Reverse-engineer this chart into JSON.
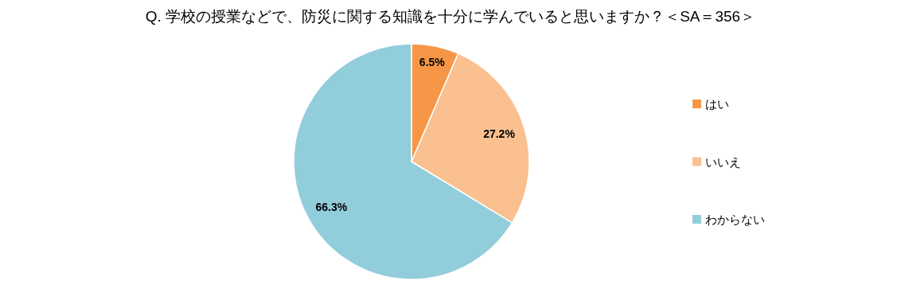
{
  "chart_data": {
    "type": "pie",
    "title": "Q. 学校の授業などで、防災に関する知識を十分に学んでいると思いますか？＜SA＝356＞",
    "categories": [
      "はい",
      "いいえ",
      "わからない"
    ],
    "values": [
      6.5,
      27.2,
      66.3
    ],
    "colors": [
      "#f79646",
      "#fac090",
      "#92cddc"
    ],
    "value_labels": [
      "6.5%",
      "27.2%",
      "66.3%"
    ],
    "legend": "right"
  }
}
